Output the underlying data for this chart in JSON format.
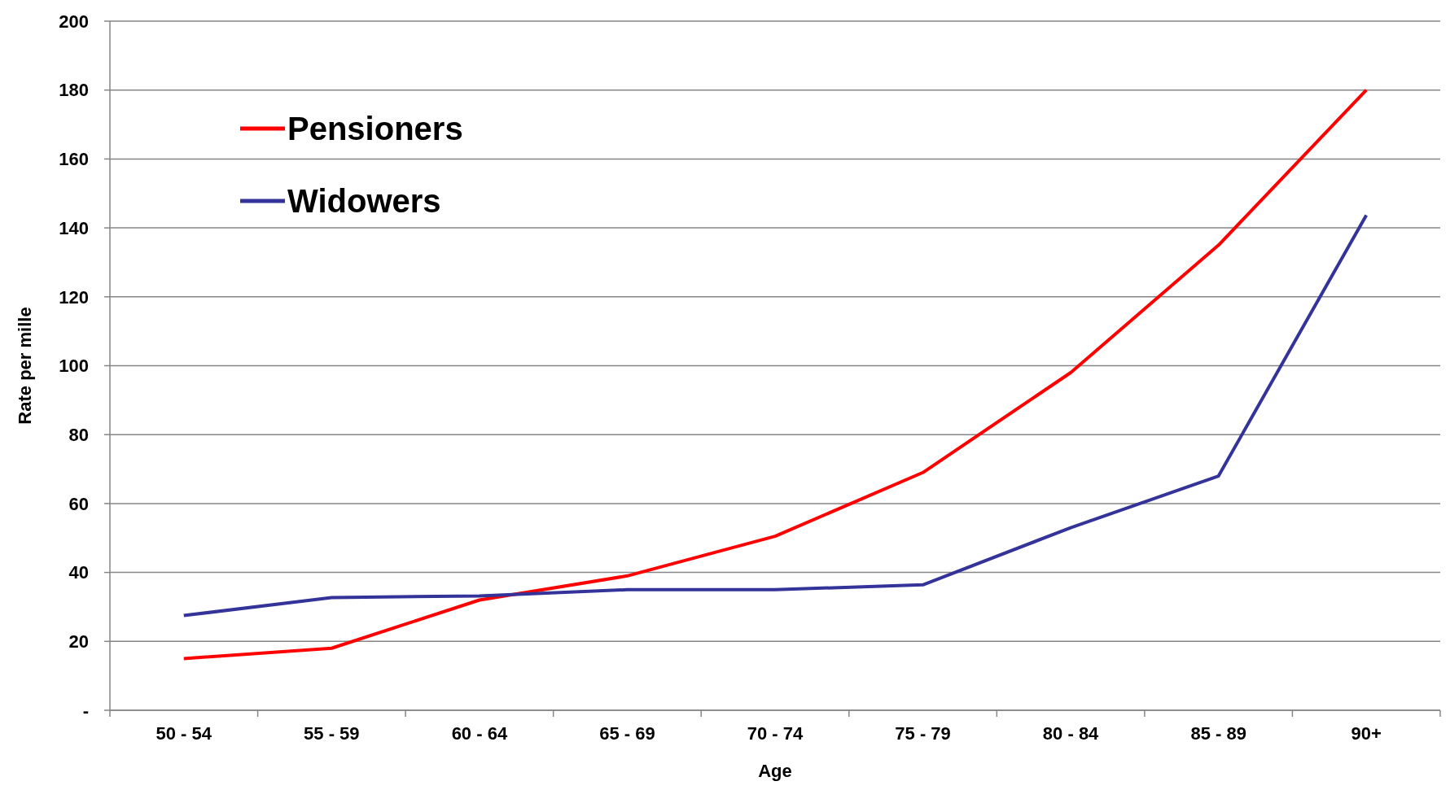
{
  "chart_data": {
    "type": "line",
    "xlabel": "Age",
    "ylabel": "Rate per mille",
    "categories": [
      "50 - 54",
      "55 - 59",
      "60 - 64",
      "65 - 69",
      "70 - 74",
      "75 - 79",
      "80 - 84",
      "85 - 89",
      "90+"
    ],
    "series": [
      {
        "name": "Pensioners",
        "color": "#ff0000",
        "values": [
          15,
          18,
          32,
          39,
          50.5,
          69,
          98,
          135,
          180
        ]
      },
      {
        "name": "Widowers",
        "color": "#333399",
        "values": [
          27.5,
          32.7,
          33.2,
          35,
          35,
          36.4,
          53,
          68,
          143.7
        ]
      }
    ],
    "ylim": [
      0,
      200
    ],
    "yticks": [
      {
        "value": 0,
        "label": "-"
      },
      20,
      40,
      60,
      80,
      100,
      120,
      140,
      160,
      180,
      200
    ],
    "grid": "y",
    "legend": "top left",
    "marker": "none",
    "line_style": "solid"
  }
}
